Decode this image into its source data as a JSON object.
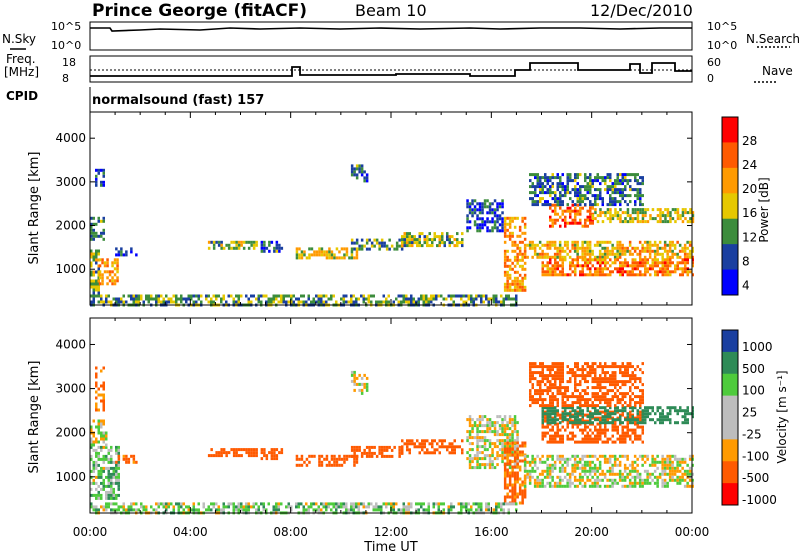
{
  "header": {
    "station": "Prince George (fitACF)",
    "beam": "Beam 10",
    "date": "12/Dec/2010"
  },
  "status_panels": {
    "nsky_label": "N.Sky",
    "nsky_ticks": [
      "10^5",
      "10^0"
    ],
    "nsearch_label": "N.Search",
    "nsearch_ticks": [
      "10^5",
      "10^0"
    ],
    "freq_label_line1": "Freq.",
    "freq_label_line2": "[MHz]",
    "freq_ticks": [
      "18",
      "8"
    ],
    "nave_label": "Nave",
    "nave_ticks": [
      "60",
      "0"
    ],
    "cpid_label": "CPID",
    "cpid_text": "normalsound (fast) 157"
  },
  "colorbars": {
    "power": {
      "label": "Power [dB]",
      "ticks": [
        "28",
        "24",
        "20",
        "16",
        "12",
        "8",
        "4"
      ],
      "colors": [
        "#ff0000",
        "#ff5a00",
        "#ff9a00",
        "#e6c800",
        "#3c8c3c",
        "#1a3fa0",
        "#0000ff"
      ]
    },
    "velocity": {
      "label": "Velocity [m s⁻¹]",
      "ticks": [
        "1000",
        "500",
        "100",
        "25",
        "-25",
        "-100",
        "-500",
        "-1000"
      ],
      "colors": [
        "#1a3fa0",
        "#2e8b57",
        "#4ecb3c",
        "#bdbdbd",
        "#bdbdbd",
        "#ff9a00",
        "#ff5a00",
        "#ff0000"
      ]
    }
  },
  "chart_data": [
    {
      "type": "heatmap",
      "panel": "power",
      "ylabel": "Slant Range [km]",
      "ylim": [
        180,
        4600
      ],
      "yticks": [
        1000,
        2000,
        3000,
        4000
      ],
      "xlim": [
        0,
        24
      ],
      "regions": [
        {
          "t": [
            0.0,
            0.35
          ],
          "r": [
            450,
            1450
          ],
          "level": 14
        },
        {
          "t": [
            0.35,
            1.1
          ],
          "r": [
            700,
            1250
          ],
          "level": 20
        },
        {
          "t": [
            0.0,
            0.5
          ],
          "r": [
            1700,
            2200
          ],
          "level": 10
        },
        {
          "t": [
            0.2,
            0.5
          ],
          "r": [
            2900,
            3300
          ],
          "level": 6
        },
        {
          "t": [
            1.0,
            1.8
          ],
          "r": [
            1300,
            1500
          ],
          "level": 8
        },
        {
          "t": [
            4.7,
            6.6
          ],
          "r": [
            1450,
            1650
          ],
          "level": 14
        },
        {
          "t": [
            6.8,
            7.6
          ],
          "r": [
            1400,
            1650
          ],
          "level": 10
        },
        {
          "t": [
            8.2,
            10.6
          ],
          "r": [
            1250,
            1500
          ],
          "level": 16
        },
        {
          "t": [
            10.4,
            12.4
          ],
          "r": [
            1450,
            1700
          ],
          "level": 12
        },
        {
          "t": [
            10.4,
            11.0
          ],
          "r": [
            3050,
            3400
          ],
          "level": 10
        },
        {
          "t": [
            12.4,
            14.8
          ],
          "r": [
            1550,
            1850
          ],
          "level": 14
        },
        {
          "t": [
            15.0,
            16.4
          ],
          "r": [
            1900,
            2600
          ],
          "level": 8
        },
        {
          "t": [
            16.5,
            17.3
          ],
          "r": [
            500,
            2200
          ],
          "level": 20
        },
        {
          "t": [
            17.3,
            24.0
          ],
          "r": [
            1300,
            1650
          ],
          "level": 18
        },
        {
          "t": [
            18.0,
            24.0
          ],
          "r": [
            900,
            1250
          ],
          "level": 22
        },
        {
          "t": [
            18.3,
            20.0
          ],
          "r": [
            2000,
            2500
          ],
          "level": 24
        },
        {
          "t": [
            20.0,
            24.0
          ],
          "r": [
            2100,
            2400
          ],
          "level": 16
        },
        {
          "t": [
            17.5,
            22.0
          ],
          "r": [
            2500,
            3200
          ],
          "level": 10
        },
        {
          "t": [
            0.0,
            17.0
          ],
          "r": [
            180,
            420
          ],
          "level": 12
        }
      ]
    },
    {
      "type": "heatmap",
      "panel": "velocity",
      "ylabel": "Slant Range [km]",
      "xlabel": "Time UT",
      "ylim": [
        180,
        4600
      ],
      "yticks": [
        1000,
        2000,
        3000,
        4000
      ],
      "xlim": [
        0,
        24
      ],
      "xticks": [
        "00:00",
        "04:00",
        "08:00",
        "12:00",
        "16:00",
        "20:00",
        "00:00"
      ],
      "regions": [
        {
          "t": [
            0.0,
            1.1
          ],
          "r": [
            500,
            1700
          ],
          "level": 60
        },
        {
          "t": [
            0.0,
            0.6
          ],
          "r": [
            1700,
            2300
          ],
          "level": 0
        },
        {
          "t": [
            0.2,
            0.5
          ],
          "r": [
            2500,
            3500
          ],
          "level": -150
        },
        {
          "t": [
            1.0,
            1.8
          ],
          "r": [
            1300,
            1500
          ],
          "level": -150
        },
        {
          "t": [
            4.7,
            6.6
          ],
          "r": [
            1450,
            1650
          ],
          "level": -300
        },
        {
          "t": [
            6.8,
            7.6
          ],
          "r": [
            1400,
            1650
          ],
          "level": -300
        },
        {
          "t": [
            8.2,
            10.6
          ],
          "r": [
            1250,
            1500
          ],
          "level": -300
        },
        {
          "t": [
            10.4,
            12.4
          ],
          "r": [
            1450,
            1700
          ],
          "level": -300
        },
        {
          "t": [
            10.4,
            11.0
          ],
          "r": [
            2900,
            3400
          ],
          "level": 0
        },
        {
          "t": [
            12.4,
            14.8
          ],
          "r": [
            1550,
            1850
          ],
          "level": -200
        },
        {
          "t": [
            15.0,
            17.0
          ],
          "r": [
            1200,
            2400
          ],
          "level": 0
        },
        {
          "t": [
            16.5,
            17.3
          ],
          "r": [
            400,
            1800
          ],
          "level": -150
        },
        {
          "t": [
            17.3,
            24.0
          ],
          "r": [
            800,
            1500
          ],
          "level": 0
        },
        {
          "t": [
            18.0,
            22.0
          ],
          "r": [
            1800,
            2500
          ],
          "level": -300
        },
        {
          "t": [
            18.0,
            24.0
          ],
          "r": [
            2200,
            2600
          ],
          "level": 300
        },
        {
          "t": [
            17.5,
            22.0
          ],
          "r": [
            2600,
            3600
          ],
          "level": -200
        },
        {
          "t": [
            0.0,
            17.0
          ],
          "r": [
            180,
            420
          ],
          "level": 40
        }
      ]
    }
  ]
}
